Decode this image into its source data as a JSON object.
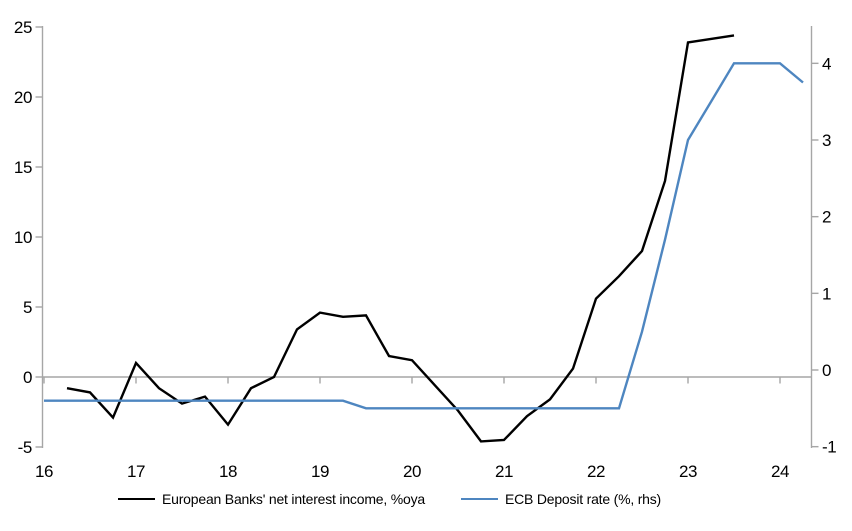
{
  "chart_data": {
    "type": "line",
    "title": "",
    "x_axis": {
      "ticks": [
        16,
        17,
        18,
        19,
        20,
        21,
        22,
        23,
        24
      ],
      "min": 16,
      "max": 24.35
    },
    "left_axis": {
      "ticks": [
        -5,
        0,
        5,
        10,
        15,
        20,
        25
      ],
      "min": -5,
      "max": 25
    },
    "right_axis": {
      "ticks": [
        -1,
        0,
        1,
        2,
        3,
        4
      ],
      "min": -1,
      "max": 4.5
    },
    "grid": "zero-line-only",
    "legend_position": "bottom-center",
    "axis_color": "#A6A6A6",
    "text_color": "#000000",
    "series": [
      {
        "name": "European Banks' net interest income, %oya",
        "axis": "left",
        "color": "#000000",
        "x": [
          16.25,
          16.5,
          16.75,
          17,
          17.25,
          17.5,
          17.75,
          18,
          18.25,
          18.5,
          18.75,
          19,
          19.25,
          19.5,
          19.75,
          20,
          20.25,
          20.5,
          20.75,
          21,
          21.25,
          21.5,
          21.75,
          22,
          22.25,
          22.5,
          22.75,
          23,
          23.25,
          23.5
        ],
        "values": [
          -0.8,
          -1.1,
          -2.9,
          1.0,
          -0.8,
          -1.9,
          -1.4,
          -3.4,
          -0.8,
          0.0,
          3.4,
          4.6,
          4.3,
          4.4,
          1.5,
          1.2,
          -0.6,
          -2.4,
          -4.6,
          -4.5,
          -2.8,
          -1.6,
          0.6,
          5.6,
          7.2,
          9.0,
          14.0,
          23.9,
          24.15,
          24.4
        ]
      },
      {
        "name": "ECB Deposit rate (%, rhs)",
        "axis": "right",
        "color": "#4E86C0",
        "x": [
          16,
          16.25,
          16.5,
          16.75,
          17,
          17.25,
          17.5,
          17.75,
          18,
          18.25,
          18.5,
          18.75,
          19,
          19.25,
          19.5,
          19.75,
          20,
          20.25,
          20.5,
          20.75,
          21,
          21.25,
          21.5,
          21.75,
          22,
          22.25,
          22.5,
          22.75,
          23,
          23.25,
          23.5,
          23.75,
          24,
          24.25
        ],
        "values": [
          -0.4,
          -0.4,
          -0.4,
          -0.4,
          -0.4,
          -0.4,
          -0.4,
          -0.4,
          -0.4,
          -0.4,
          -0.4,
          -0.4,
          -0.4,
          -0.4,
          -0.5,
          -0.5,
          -0.5,
          -0.5,
          -0.5,
          -0.5,
          -0.5,
          -0.5,
          -0.5,
          -0.5,
          -0.5,
          -0.5,
          0.5,
          1.7,
          3.0,
          3.5,
          4.0,
          4.0,
          4.0,
          3.75
        ]
      }
    ]
  }
}
